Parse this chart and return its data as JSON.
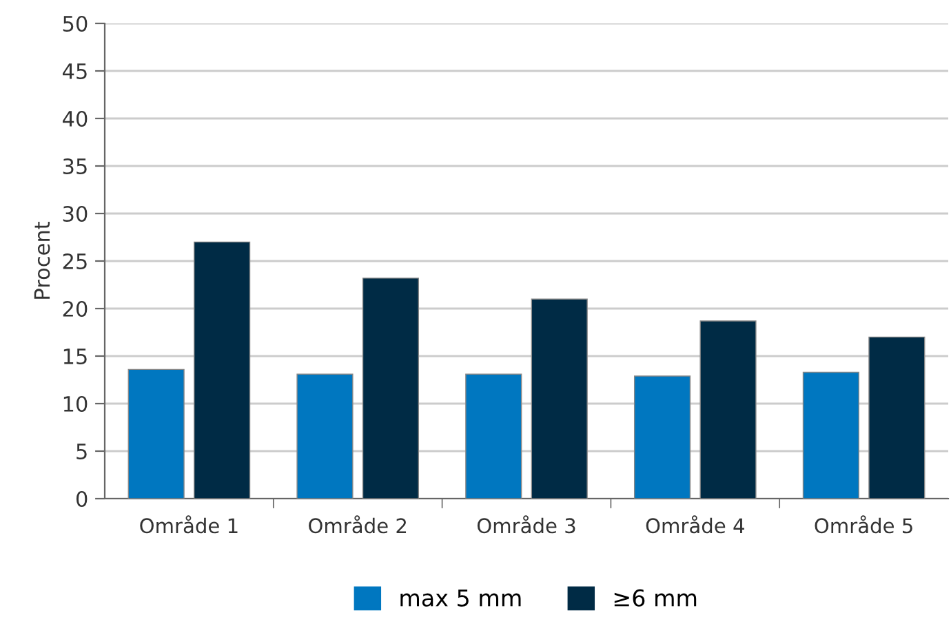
{
  "chart_data": {
    "type": "bar",
    "ylabel": "Procent",
    "categories": [
      "Område 1",
      "Område 2",
      "Område 3",
      "Område 4",
      "Område 5"
    ],
    "series": [
      {
        "name": "max 5 mm",
        "color": "#0077c0",
        "values": [
          13.6,
          13.1,
          13.1,
          12.9,
          13.3
        ]
      },
      {
        "name": "≥6 mm",
        "color": "#002b45",
        "values": [
          27,
          23.2,
          21,
          18.7,
          17
        ]
      }
    ],
    "ylim": [
      0,
      50
    ],
    "yticks": [
      0,
      5,
      10,
      15,
      20,
      25,
      30,
      35,
      40,
      45,
      50
    ],
    "grid": "y",
    "legend": "bottom"
  }
}
